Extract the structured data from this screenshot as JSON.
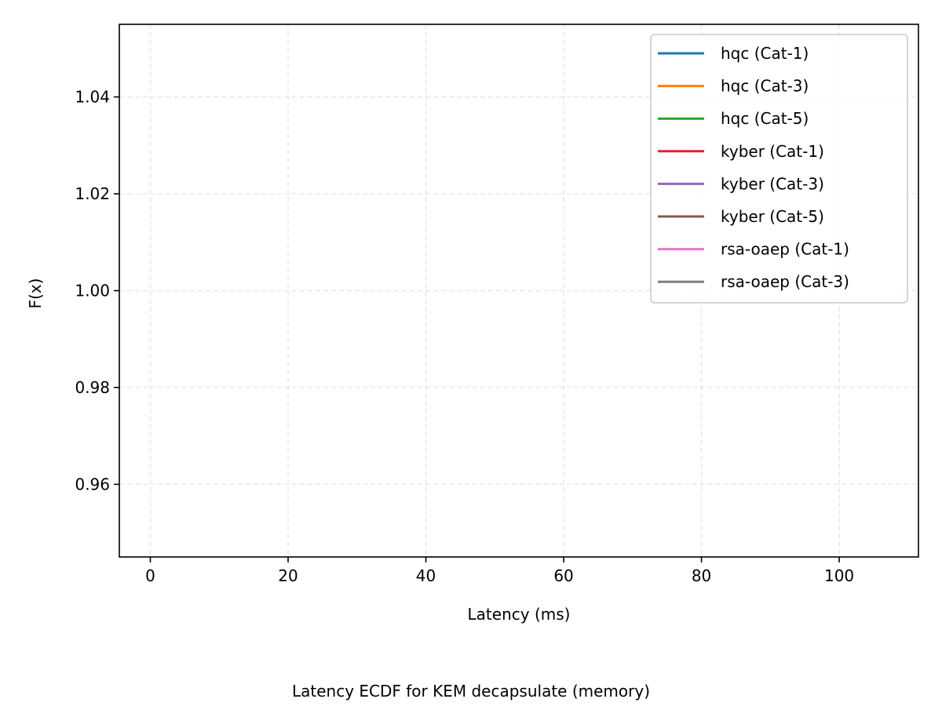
{
  "chart_data": {
    "type": "line",
    "title": "",
    "caption": "Latency ECDF for KEM decapsulate (memory)",
    "xlabel": "Latency (ms)",
    "ylabel": "F(x)",
    "xlim": [
      -4.5,
      111.5
    ],
    "ylim": [
      0.945,
      1.055
    ],
    "xticks": [
      0,
      20,
      40,
      60,
      80,
      100
    ],
    "xtick_labels": [
      "0",
      "20",
      "40",
      "60",
      "80",
      "100"
    ],
    "yticks": [
      0.96,
      0.98,
      1.0,
      1.02,
      1.04
    ],
    "ytick_labels": [
      "0.96",
      "0.98",
      "1.00",
      "1.02",
      "1.04"
    ],
    "grid": true,
    "legend_position": "top-right",
    "series": [
      {
        "name": "hqc (Cat-1)",
        "color": "#1f77b4",
        "x": [],
        "y": []
      },
      {
        "name": "hqc (Cat-3)",
        "color": "#ff7f0e",
        "x": [],
        "y": []
      },
      {
        "name": "hqc (Cat-5)",
        "color": "#2ca02c",
        "x": [],
        "y": []
      },
      {
        "name": "kyber (Cat-1)",
        "color": "#d62728",
        "x": [],
        "y": []
      },
      {
        "name": "kyber (Cat-3)",
        "color": "#9467bd",
        "x": [],
        "y": []
      },
      {
        "name": "kyber (Cat-5)",
        "color": "#8c564b",
        "x": [],
        "y": []
      },
      {
        "name": "rsa-oaep (Cat-1)",
        "color": "#e377c2",
        "x": [],
        "y": []
      },
      {
        "name": "rsa-oaep (Cat-3)",
        "color": "#7f7f7f",
        "x": [],
        "y": []
      }
    ]
  }
}
